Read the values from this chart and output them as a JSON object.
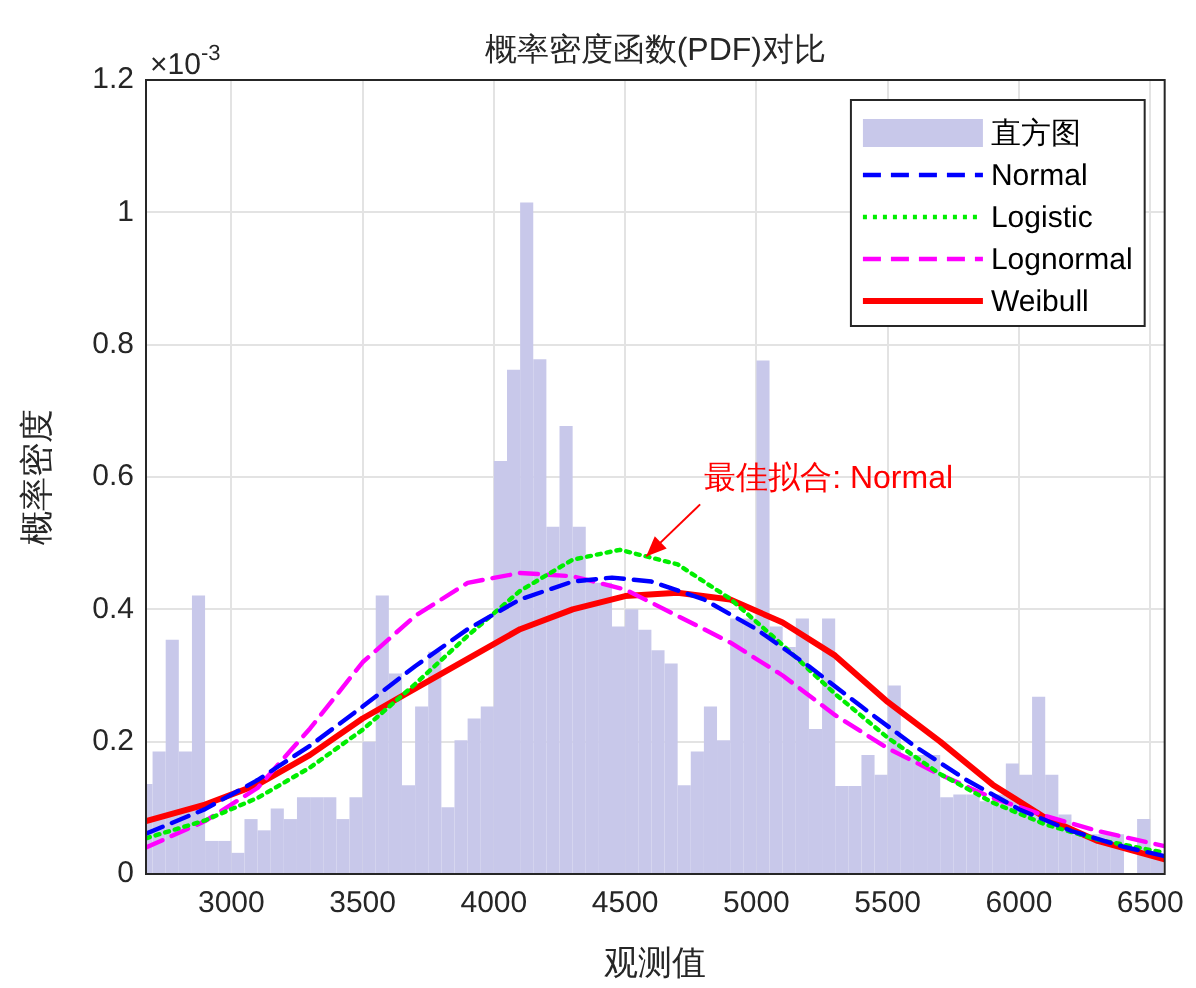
{
  "chart_data": {
    "type": "histogram",
    "title": "概率密度函数(PDF)对比",
    "xlabel": "观测值",
    "ylabel": "概率密度",
    "annotations": [
      "×10$^{-3}$",
      {
        "text": "最佳拟合: Normal",
        "x": 4580,
        "y": 0.48
      }
    ],
    "xlim": [
      2675,
      6555
    ],
    "ylim": [
      0,
      1.2
    ],
    "xticks": [
      3000,
      3500,
      4000,
      4500,
      5000,
      5500,
      6000,
      6500
    ],
    "yticks": [
      0,
      0.2,
      0.4,
      0.6,
      0.8,
      1,
      1.2
    ],
    "grid": true,
    "legend": "top right",
    "marker": "none",
    "series": [
      {
        "type": "histogram",
        "name": "直方图",
        "color": "#c8c8ea",
        "bins": [
          2675,
          2700,
          2750,
          2800,
          2850,
          2900,
          2950,
          3000,
          3050,
          3100,
          3150,
          3200,
          3250,
          3300,
          3350,
          3400,
          3450,
          3500,
          3550,
          3600,
          3650,
          3700,
          3750,
          3800,
          3850,
          3900,
          3950,
          4000,
          4050,
          4100,
          4150,
          4200,
          4250,
          4300,
          4350,
          4400,
          4450,
          4500,
          4550,
          4600,
          4650,
          4700,
          4750,
          4800,
          4850,
          4900,
          4950,
          5000,
          5050,
          5100,
          5150,
          5200,
          5250,
          5300,
          5350,
          5400,
          5450,
          5500,
          5550,
          5600,
          5650,
          5700,
          5750,
          5800,
          5850,
          5900,
          5950,
          6000,
          6050,
          6100,
          6150,
          6200,
          6250,
          6300,
          6350,
          6400,
          6450,
          6500,
          6550
        ],
        "values": [
          0.136,
          0.185,
          0.354,
          0.185,
          0.421,
          0.05,
          0.05,
          0.032,
          0.083,
          0.066,
          0.099,
          0.083,
          0.116,
          0.116,
          0.116,
          0.083,
          0.116,
          0.2,
          0.421,
          0.303,
          0.134,
          0.253,
          0.336,
          0.101,
          0.202,
          0.235,
          0.253,
          0.624,
          0.762,
          1.015,
          0.778,
          0.525,
          0.677,
          0.525,
          0.44,
          0.44,
          0.374,
          0.4,
          0.369,
          0.338,
          0.318,
          0.134,
          0.185,
          0.253,
          0.202,
          0.386,
          0.386,
          0.776,
          0.374,
          0.343,
          0.386,
          0.219,
          0.386,
          0.133,
          0.133,
          0.18,
          0.15,
          0.285,
          0.18,
          0.18,
          0.18,
          0.116,
          0.12,
          0.12,
          0.11,
          0.12,
          0.167,
          0.15,
          0.268,
          0.15,
          0.09,
          0.06,
          0.06,
          0.06,
          0.06,
          0,
          0.083,
          0.03
        ]
      },
      {
        "type": "line",
        "name": "Normal",
        "color": "#0000ff",
        "line_style": "dashed",
        "x": [
          2675,
          2900,
          3100,
          3300,
          3500,
          3700,
          3900,
          4100,
          4300,
          4450,
          4600,
          4800,
          5000,
          5200,
          5400,
          5600,
          5800,
          6000,
          6200,
          6400,
          6555
        ],
        "values": [
          0.061,
          0.098,
          0.142,
          0.194,
          0.253,
          0.314,
          0.37,
          0.415,
          0.442,
          0.448,
          0.442,
          0.415,
          0.37,
          0.314,
          0.253,
          0.194,
          0.142,
          0.098,
          0.065,
          0.041,
          0.027
        ]
      },
      {
        "type": "line",
        "name": "Logistic",
        "color": "#00ee00",
        "line_style": "dotted",
        "x": [
          2675,
          2900,
          3100,
          3300,
          3500,
          3700,
          3900,
          4100,
          4300,
          4480,
          4700,
          4900,
          5100,
          5300,
          5500,
          5700,
          5900,
          6100,
          6300,
          6555
        ],
        "values": [
          0.054,
          0.081,
          0.115,
          0.161,
          0.218,
          0.287,
          0.36,
          0.428,
          0.475,
          0.49,
          0.468,
          0.416,
          0.346,
          0.272,
          0.206,
          0.151,
          0.108,
          0.075,
          0.052,
          0.032
        ]
      },
      {
        "type": "line",
        "name": "Lognormal",
        "color": "#ff00ff",
        "line_style": "dashed",
        "x": [
          2675,
          2900,
          3100,
          3300,
          3500,
          3700,
          3900,
          4100,
          4300,
          4500,
          4700,
          4900,
          5100,
          5300,
          5500,
          5700,
          5900,
          6100,
          6300,
          6555
        ],
        "values": [
          0.04,
          0.08,
          0.13,
          0.22,
          0.32,
          0.39,
          0.44,
          0.455,
          0.45,
          0.43,
          0.39,
          0.35,
          0.3,
          0.24,
          0.19,
          0.15,
          0.115,
          0.088,
          0.065,
          0.042
        ]
      },
      {
        "type": "line",
        "name": "Weibull",
        "color": "#ff0000",
        "line_style": "solid",
        "x": [
          2675,
          2900,
          3100,
          3300,
          3500,
          3700,
          3900,
          4100,
          4300,
          4500,
          4700,
          4900,
          5100,
          5300,
          5500,
          5700,
          5900,
          6100,
          6300,
          6555
        ],
        "values": [
          0.08,
          0.105,
          0.135,
          0.18,
          0.235,
          0.28,
          0.325,
          0.37,
          0.4,
          0.42,
          0.425,
          0.415,
          0.38,
          0.33,
          0.26,
          0.2,
          0.135,
          0.085,
          0.05,
          0.022
        ]
      }
    ]
  }
}
